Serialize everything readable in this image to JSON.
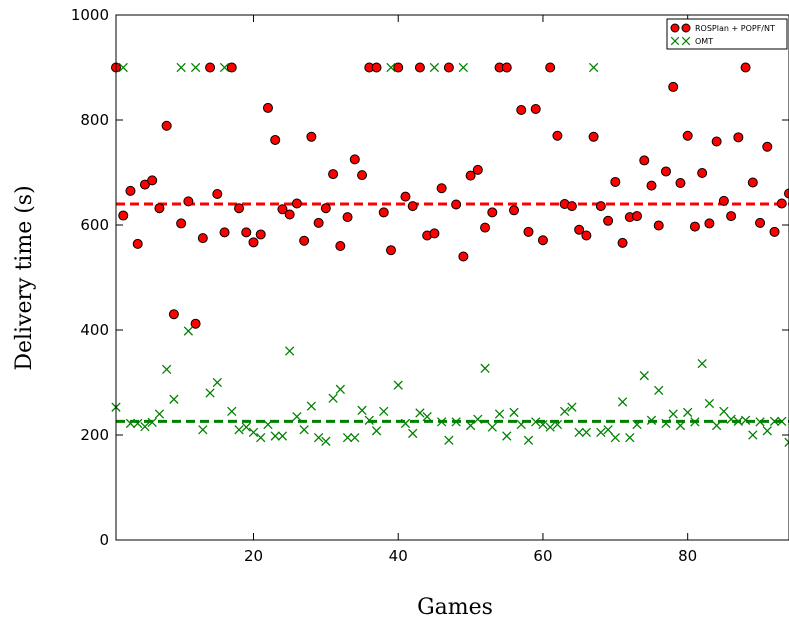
{
  "chart_data": {
    "type": "scatter",
    "xlabel": "Games",
    "ylabel": "Delivery time (s)",
    "xlim": [
      1,
      94
    ],
    "ylim": [
      0,
      1000
    ],
    "xticks": [
      20,
      40,
      60,
      80
    ],
    "yticks": [
      0,
      200,
      400,
      600,
      800,
      1000
    ],
    "legend_position": "top-right",
    "series": [
      {
        "name": "ROSPlan + POPF/NT",
        "marker": "circle",
        "color": "#ff0000",
        "mean": 640,
        "x": [
          1,
          2,
          3,
          4,
          5,
          6,
          7,
          8,
          9,
          10,
          11,
          12,
          13,
          14,
          15,
          16,
          17,
          18,
          19,
          20,
          21,
          22,
          23,
          24,
          25,
          26,
          27,
          28,
          29,
          30,
          31,
          32,
          33,
          34,
          35,
          36,
          37,
          38,
          39,
          40,
          41,
          42,
          43,
          44,
          45,
          46,
          47,
          48,
          49,
          50,
          51,
          52,
          53,
          54,
          55,
          56,
          57,
          58,
          59,
          60,
          61,
          62,
          63,
          64,
          65,
          66,
          67,
          68,
          69,
          70,
          71,
          72,
          73,
          74,
          75,
          76,
          77,
          78,
          79,
          80,
          81,
          82,
          83,
          84,
          85,
          86,
          87,
          88,
          89,
          90,
          91,
          92,
          93,
          94
        ],
        "y": [
          900,
          618,
          665,
          564,
          677,
          685,
          632,
          789,
          430,
          603,
          645,
          412,
          575,
          900,
          659,
          586,
          900,
          632,
          586,
          567,
          582,
          823,
          762,
          630,
          620,
          641,
          570,
          768,
          604,
          632,
          697,
          560,
          615,
          725,
          695,
          900,
          900,
          624,
          552,
          900,
          654,
          636,
          900,
          580,
          584,
          670,
          900,
          639,
          540,
          694,
          705,
          595,
          624,
          900,
          900,
          628,
          819,
          587,
          821,
          571,
          900,
          770,
          640,
          636,
          591,
          580,
          768,
          636,
          608,
          682,
          566,
          615,
          617,
          723,
          675,
          599,
          702,
          863,
          680,
          770,
          597,
          699,
          603,
          759,
          646,
          617,
          767,
          900,
          681,
          604,
          749,
          587,
          641,
          660
        ]
      },
      {
        "name": "OMT",
        "marker": "x",
        "color": "#008000",
        "mean": 226,
        "x": [
          1,
          2,
          3,
          4,
          5,
          6,
          7,
          8,
          9,
          10,
          11,
          12,
          13,
          14,
          15,
          16,
          17,
          18,
          19,
          20,
          21,
          22,
          23,
          24,
          25,
          26,
          27,
          28,
          29,
          30,
          31,
          32,
          33,
          34,
          35,
          36,
          37,
          38,
          39,
          40,
          41,
          42,
          43,
          44,
          45,
          46,
          47,
          48,
          49,
          50,
          51,
          52,
          53,
          54,
          55,
          56,
          57,
          58,
          59,
          60,
          61,
          62,
          63,
          64,
          65,
          66,
          67,
          68,
          69,
          70,
          71,
          72,
          73,
          74,
          75,
          76,
          77,
          78,
          79,
          80,
          81,
          82,
          83,
          84,
          85,
          86,
          87,
          88,
          89,
          90,
          91,
          92,
          93,
          94
        ],
        "y": [
          253,
          900,
          222,
          222,
          216,
          224,
          240,
          325,
          268,
          900,
          398,
          900,
          210,
          280,
          300,
          900,
          245,
          210,
          215,
          205,
          195,
          220,
          198,
          198,
          360,
          235,
          210,
          255,
          195,
          188,
          270,
          287,
          195,
          195,
          247,
          228,
          208,
          245,
          900,
          295,
          222,
          203,
          242,
          235,
          900,
          225,
          190,
          225,
          900,
          218,
          230,
          327,
          215,
          240,
          198,
          243,
          220,
          190,
          225,
          220,
          215,
          220,
          245,
          253,
          205,
          205,
          900,
          205,
          210,
          195,
          263,
          195,
          220,
          313,
          228,
          285,
          222,
          240,
          218,
          243,
          225,
          336,
          260,
          218,
          245,
          230,
          226,
          228,
          200,
          225,
          208,
          226,
          226,
          186
        ]
      }
    ]
  }
}
